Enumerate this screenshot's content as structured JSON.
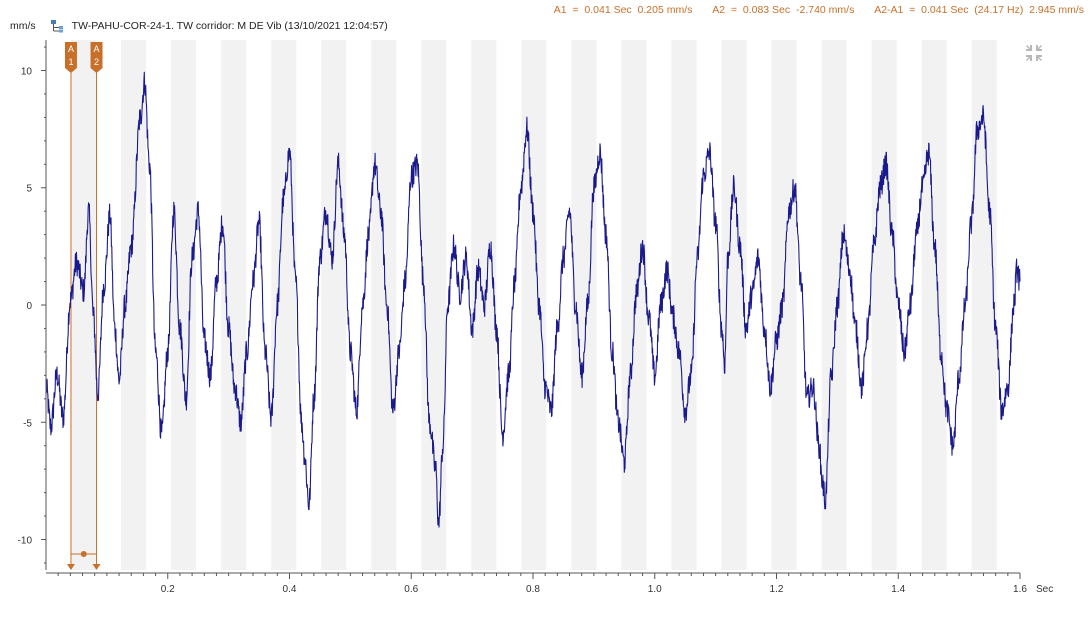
{
  "header": {
    "units": "mm/s",
    "title": "TW-PAHU-COR-24-1.  TW corridor: M DE Vib (13/10/2021 12:04:57)",
    "signal_icon": "signal-tree-icon"
  },
  "cursor_readout": {
    "a1": "A1  =  0.041 Sec  0.205 mm/s",
    "a2": "A2  =  0.083 Sec  -2.740 mm/s",
    "delta": "A2-A1  =  0.041 Sec  (24.17 Hz)  2.945 mm/s"
  },
  "controls": {
    "collapse_icon": "collapse-arrows-icon"
  },
  "colors": {
    "trace": "#1a1a8c",
    "cursor": "#c8702a",
    "band": "#f2f2f2",
    "axis": "#555555"
  },
  "chart_data": {
    "type": "line",
    "xlabel": "Sec",
    "ylabel": "mm/s",
    "xlim": [
      0,
      1.6
    ],
    "ylim": [
      -11.3,
      11.3
    ],
    "x_ticks": [
      "0.2",
      "0.4",
      "0.6",
      "0.8",
      "1.0",
      "1.2",
      "1.4",
      "1.6"
    ],
    "y_ticks": [
      "10",
      "5",
      "0",
      "-5",
      "-10"
    ],
    "x_tick_values": [
      0.2,
      0.4,
      0.6,
      0.8,
      1.0,
      1.2,
      1.4,
      1.6
    ],
    "y_tick_values": [
      10,
      5,
      0,
      -5,
      -10
    ],
    "cursors": [
      {
        "label": "A 1",
        "x": 0.041,
        "y": 0.205
      },
      {
        "label": "A 2",
        "x": 0.083,
        "y": -2.74
      }
    ],
    "series": [
      {
        "keypoints": [
          [
            0.0,
            -3.5
          ],
          [
            0.008,
            -5.2
          ],
          [
            0.018,
            -3.0
          ],
          [
            0.028,
            -4.8
          ],
          [
            0.04,
            0.2
          ],
          [
            0.05,
            1.8
          ],
          [
            0.062,
            0.6
          ],
          [
            0.07,
            4.0
          ],
          [
            0.078,
            -0.5
          ],
          [
            0.085,
            -3.8
          ],
          [
            0.095,
            0.8
          ],
          [
            0.105,
            3.8
          ],
          [
            0.113,
            -1.0
          ],
          [
            0.12,
            -3.2
          ],
          [
            0.13,
            0.0
          ],
          [
            0.14,
            2.5
          ],
          [
            0.155,
            8.0
          ],
          [
            0.162,
            9.5
          ],
          [
            0.17,
            6.0
          ],
          [
            0.18,
            -2.0
          ],
          [
            0.19,
            -5.5
          ],
          [
            0.2,
            -2.0
          ],
          [
            0.21,
            4.0
          ],
          [
            0.22,
            -1.0
          ],
          [
            0.23,
            -4.0
          ],
          [
            0.24,
            2.0
          ],
          [
            0.25,
            4.0
          ],
          [
            0.26,
            -1.5
          ],
          [
            0.27,
            -3.0
          ],
          [
            0.28,
            1.0
          ],
          [
            0.29,
            3.5
          ],
          [
            0.3,
            -1.0
          ],
          [
            0.31,
            -3.5
          ],
          [
            0.32,
            -5.0
          ],
          [
            0.33,
            -2.0
          ],
          [
            0.34,
            1.0
          ],
          [
            0.35,
            3.5
          ],
          [
            0.36,
            -2.0
          ],
          [
            0.37,
            -4.8
          ],
          [
            0.38,
            0.0
          ],
          [
            0.39,
            4.5
          ],
          [
            0.4,
            6.5
          ],
          [
            0.41,
            1.0
          ],
          [
            0.42,
            -5.0
          ],
          [
            0.425,
            -6.5
          ],
          [
            0.432,
            -8.5
          ],
          [
            0.44,
            -4.0
          ],
          [
            0.45,
            2.0
          ],
          [
            0.46,
            4.0
          ],
          [
            0.47,
            2.0
          ],
          [
            0.48,
            6.0
          ],
          [
            0.49,
            3.0
          ],
          [
            0.5,
            -2.0
          ],
          [
            0.51,
            -4.5
          ],
          [
            0.52,
            0.0
          ],
          [
            0.53,
            3.0
          ],
          [
            0.54,
            6.0
          ],
          [
            0.55,
            4.0
          ],
          [
            0.56,
            0.0
          ],
          [
            0.57,
            -4.5
          ],
          [
            0.58,
            -2.0
          ],
          [
            0.59,
            1.0
          ],
          [
            0.6,
            5.5
          ],
          [
            0.61,
            6.0
          ],
          [
            0.62,
            1.0
          ],
          [
            0.63,
            -5.0
          ],
          [
            0.64,
            -7.0
          ],
          [
            0.645,
            -9.3
          ],
          [
            0.652,
            -6.0
          ],
          [
            0.66,
            0.0
          ],
          [
            0.67,
            2.5
          ],
          [
            0.68,
            0.5
          ],
          [
            0.69,
            2.0
          ],
          [
            0.7,
            -1.0
          ],
          [
            0.71,
            1.5
          ],
          [
            0.72,
            0.0
          ],
          [
            0.73,
            2.5
          ],
          [
            0.74,
            -1.0
          ],
          [
            0.75,
            -5.5
          ],
          [
            0.76,
            -3.0
          ],
          [
            0.77,
            1.0
          ],
          [
            0.78,
            5.0
          ],
          [
            0.79,
            7.5
          ],
          [
            0.8,
            4.0
          ],
          [
            0.81,
            0.0
          ],
          [
            0.82,
            -3.5
          ],
          [
            0.83,
            -4.5
          ],
          [
            0.84,
            -1.0
          ],
          [
            0.85,
            2.0
          ],
          [
            0.86,
            4.0
          ],
          [
            0.87,
            0.0
          ],
          [
            0.88,
            -3.0
          ],
          [
            0.89,
            0.0
          ],
          [
            0.9,
            5.0
          ],
          [
            0.91,
            6.5
          ],
          [
            0.92,
            3.0
          ],
          [
            0.93,
            -2.0
          ],
          [
            0.94,
            -5.0
          ],
          [
            0.95,
            -6.7
          ],
          [
            0.96,
            -3.0
          ],
          [
            0.97,
            0.5
          ],
          [
            0.98,
            2.5
          ],
          [
            0.99,
            -0.5
          ],
          [
            1.0,
            -3.0
          ],
          [
            1.01,
            0.0
          ],
          [
            1.02,
            1.5
          ],
          [
            1.03,
            -0.5
          ],
          [
            1.04,
            -2.0
          ],
          [
            1.05,
            -4.5
          ],
          [
            1.06,
            -3.0
          ],
          [
            1.07,
            2.0
          ],
          [
            1.08,
            5.5
          ],
          [
            1.09,
            6.5
          ],
          [
            1.1,
            3.5
          ],
          [
            1.11,
            -1.0
          ],
          [
            1.115,
            -2.5
          ],
          [
            1.12,
            2.0
          ],
          [
            1.13,
            5.0
          ],
          [
            1.14,
            2.5
          ],
          [
            1.15,
            -1.0
          ],
          [
            1.16,
            0.5
          ],
          [
            1.17,
            2.0
          ],
          [
            1.18,
            -1.0
          ],
          [
            1.19,
            -3.5
          ],
          [
            1.2,
            -1.5
          ],
          [
            1.21,
            0.0
          ],
          [
            1.22,
            4.0
          ],
          [
            1.23,
            5.0
          ],
          [
            1.24,
            1.0
          ],
          [
            1.25,
            -4.0
          ],
          [
            1.26,
            -3.5
          ],
          [
            1.27,
            -6.0
          ],
          [
            1.275,
            -7.5
          ],
          [
            1.28,
            -8.3
          ],
          [
            1.29,
            -3.0
          ],
          [
            1.3,
            0.0
          ],
          [
            1.31,
            3.0
          ],
          [
            1.32,
            1.5
          ],
          [
            1.33,
            -1.0
          ],
          [
            1.34,
            -3.5
          ],
          [
            1.35,
            -1.0
          ],
          [
            1.36,
            2.5
          ],
          [
            1.37,
            5.0
          ],
          [
            1.38,
            6.0
          ],
          [
            1.39,
            3.0
          ],
          [
            1.4,
            0.0
          ],
          [
            1.41,
            -2.0
          ],
          [
            1.42,
            0.0
          ],
          [
            1.43,
            3.0
          ],
          [
            1.44,
            5.0
          ],
          [
            1.45,
            6.5
          ],
          [
            1.46,
            2.5
          ],
          [
            1.47,
            -2.0
          ],
          [
            1.48,
            -4.5
          ],
          [
            1.49,
            -6.0
          ],
          [
            1.5,
            -3.0
          ],
          [
            1.51,
            0.0
          ],
          [
            1.52,
            3.5
          ],
          [
            1.53,
            7.5
          ],
          [
            1.54,
            8.0
          ],
          [
            1.55,
            4.0
          ],
          [
            1.56,
            -1.0
          ],
          [
            1.57,
            -4.5
          ],
          [
            1.58,
            -3.5
          ],
          [
            1.59,
            0.0
          ],
          [
            1.595,
            1.5
          ],
          [
            1.6,
            1.0
          ]
        ]
      }
    ]
  }
}
